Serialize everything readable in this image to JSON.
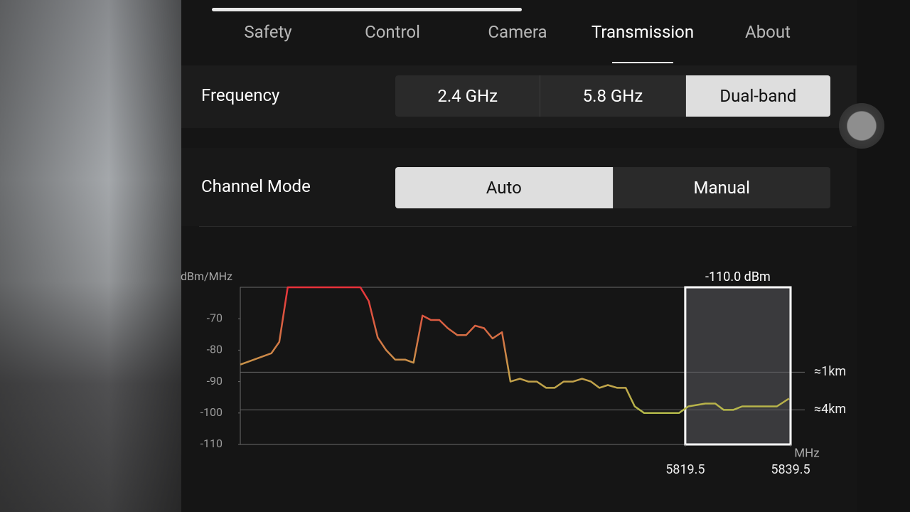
{
  "tabs": [
    {
      "label": "Safety",
      "selected": false
    },
    {
      "label": "Control",
      "selected": false
    },
    {
      "label": "Camera",
      "selected": false
    },
    {
      "label": "Transmission",
      "selected": true
    },
    {
      "label": "About",
      "selected": false
    }
  ],
  "frequency": {
    "label": "Frequency",
    "options": [
      {
        "label": "2.4 GHz",
        "selected": false
      },
      {
        "label": "5.8 GHz",
        "selected": false
      },
      {
        "label": "Dual-band",
        "selected": true
      }
    ]
  },
  "channel_mode": {
    "label": "Channel Mode",
    "options": [
      {
        "label": "Auto",
        "selected": true
      },
      {
        "label": "Manual",
        "selected": false
      }
    ]
  },
  "chart_data": {
    "type": "line",
    "y_label": "dBm/MHz",
    "x_label": "MHz",
    "x": [
      5735,
      5740.9,
      5742.4,
      5744,
      5757.8,
      5759.4,
      5761.1,
      5762.7,
      5764.4,
      5766.3,
      5767.9,
      5769.6,
      5771.2,
      5772.8,
      5774.4,
      5776.2,
      5777.9,
      5779.6,
      5781.3,
      5782.9,
      5784.7,
      5786.3,
      5788.1,
      5789.7,
      5791.3,
      5793.1,
      5794.7,
      5796.4,
      5798.2,
      5799.9,
      5801.6,
      5803.2,
      5804.8,
      5806.6,
      5808.2,
      5809.9,
      5811.7,
      5818.3,
      5820.1,
      5823.3,
      5825.2,
      5826.8,
      5828.6,
      5830.3,
      5836.9,
      5839.2
    ],
    "values": [
      -84.6,
      -81,
      -77.4,
      -60,
      -60,
      -64.4,
      -76,
      -80,
      -83,
      -83,
      -84,
      -69,
      -70.4,
      -70.4,
      -73,
      -75.2,
      -75.2,
      -72.2,
      -73,
      -76.3,
      -74.3,
      -90,
      -89.1,
      -90,
      -90,
      -92,
      -92,
      -90,
      -90,
      -89.1,
      -90,
      -92,
      -91.1,
      -92,
      -92,
      -97.9,
      -100,
      -100,
      -97.9,
      -97,
      -97,
      -99,
      -99,
      -97.9,
      -97.9,
      -95.4
    ],
    "color_scale": [
      "#e8303a",
      "#c9964a",
      "#a6d04a"
    ],
    "xlim": [
      5735,
      5839.5
    ],
    "xticks": [
      5819.5,
      5839.5
    ],
    "ylim": [
      -110,
      -60
    ],
    "yticks": [
      -110,
      -100,
      -90,
      -80,
      -70
    ],
    "reference_lines": [
      {
        "value": -87,
        "label": "≈1km"
      },
      {
        "value": -99,
        "label": "≈4km"
      }
    ],
    "selected_range": {
      "x": [
        5819.5,
        5839.5
      ],
      "label": "-110.0 dBm"
    }
  }
}
